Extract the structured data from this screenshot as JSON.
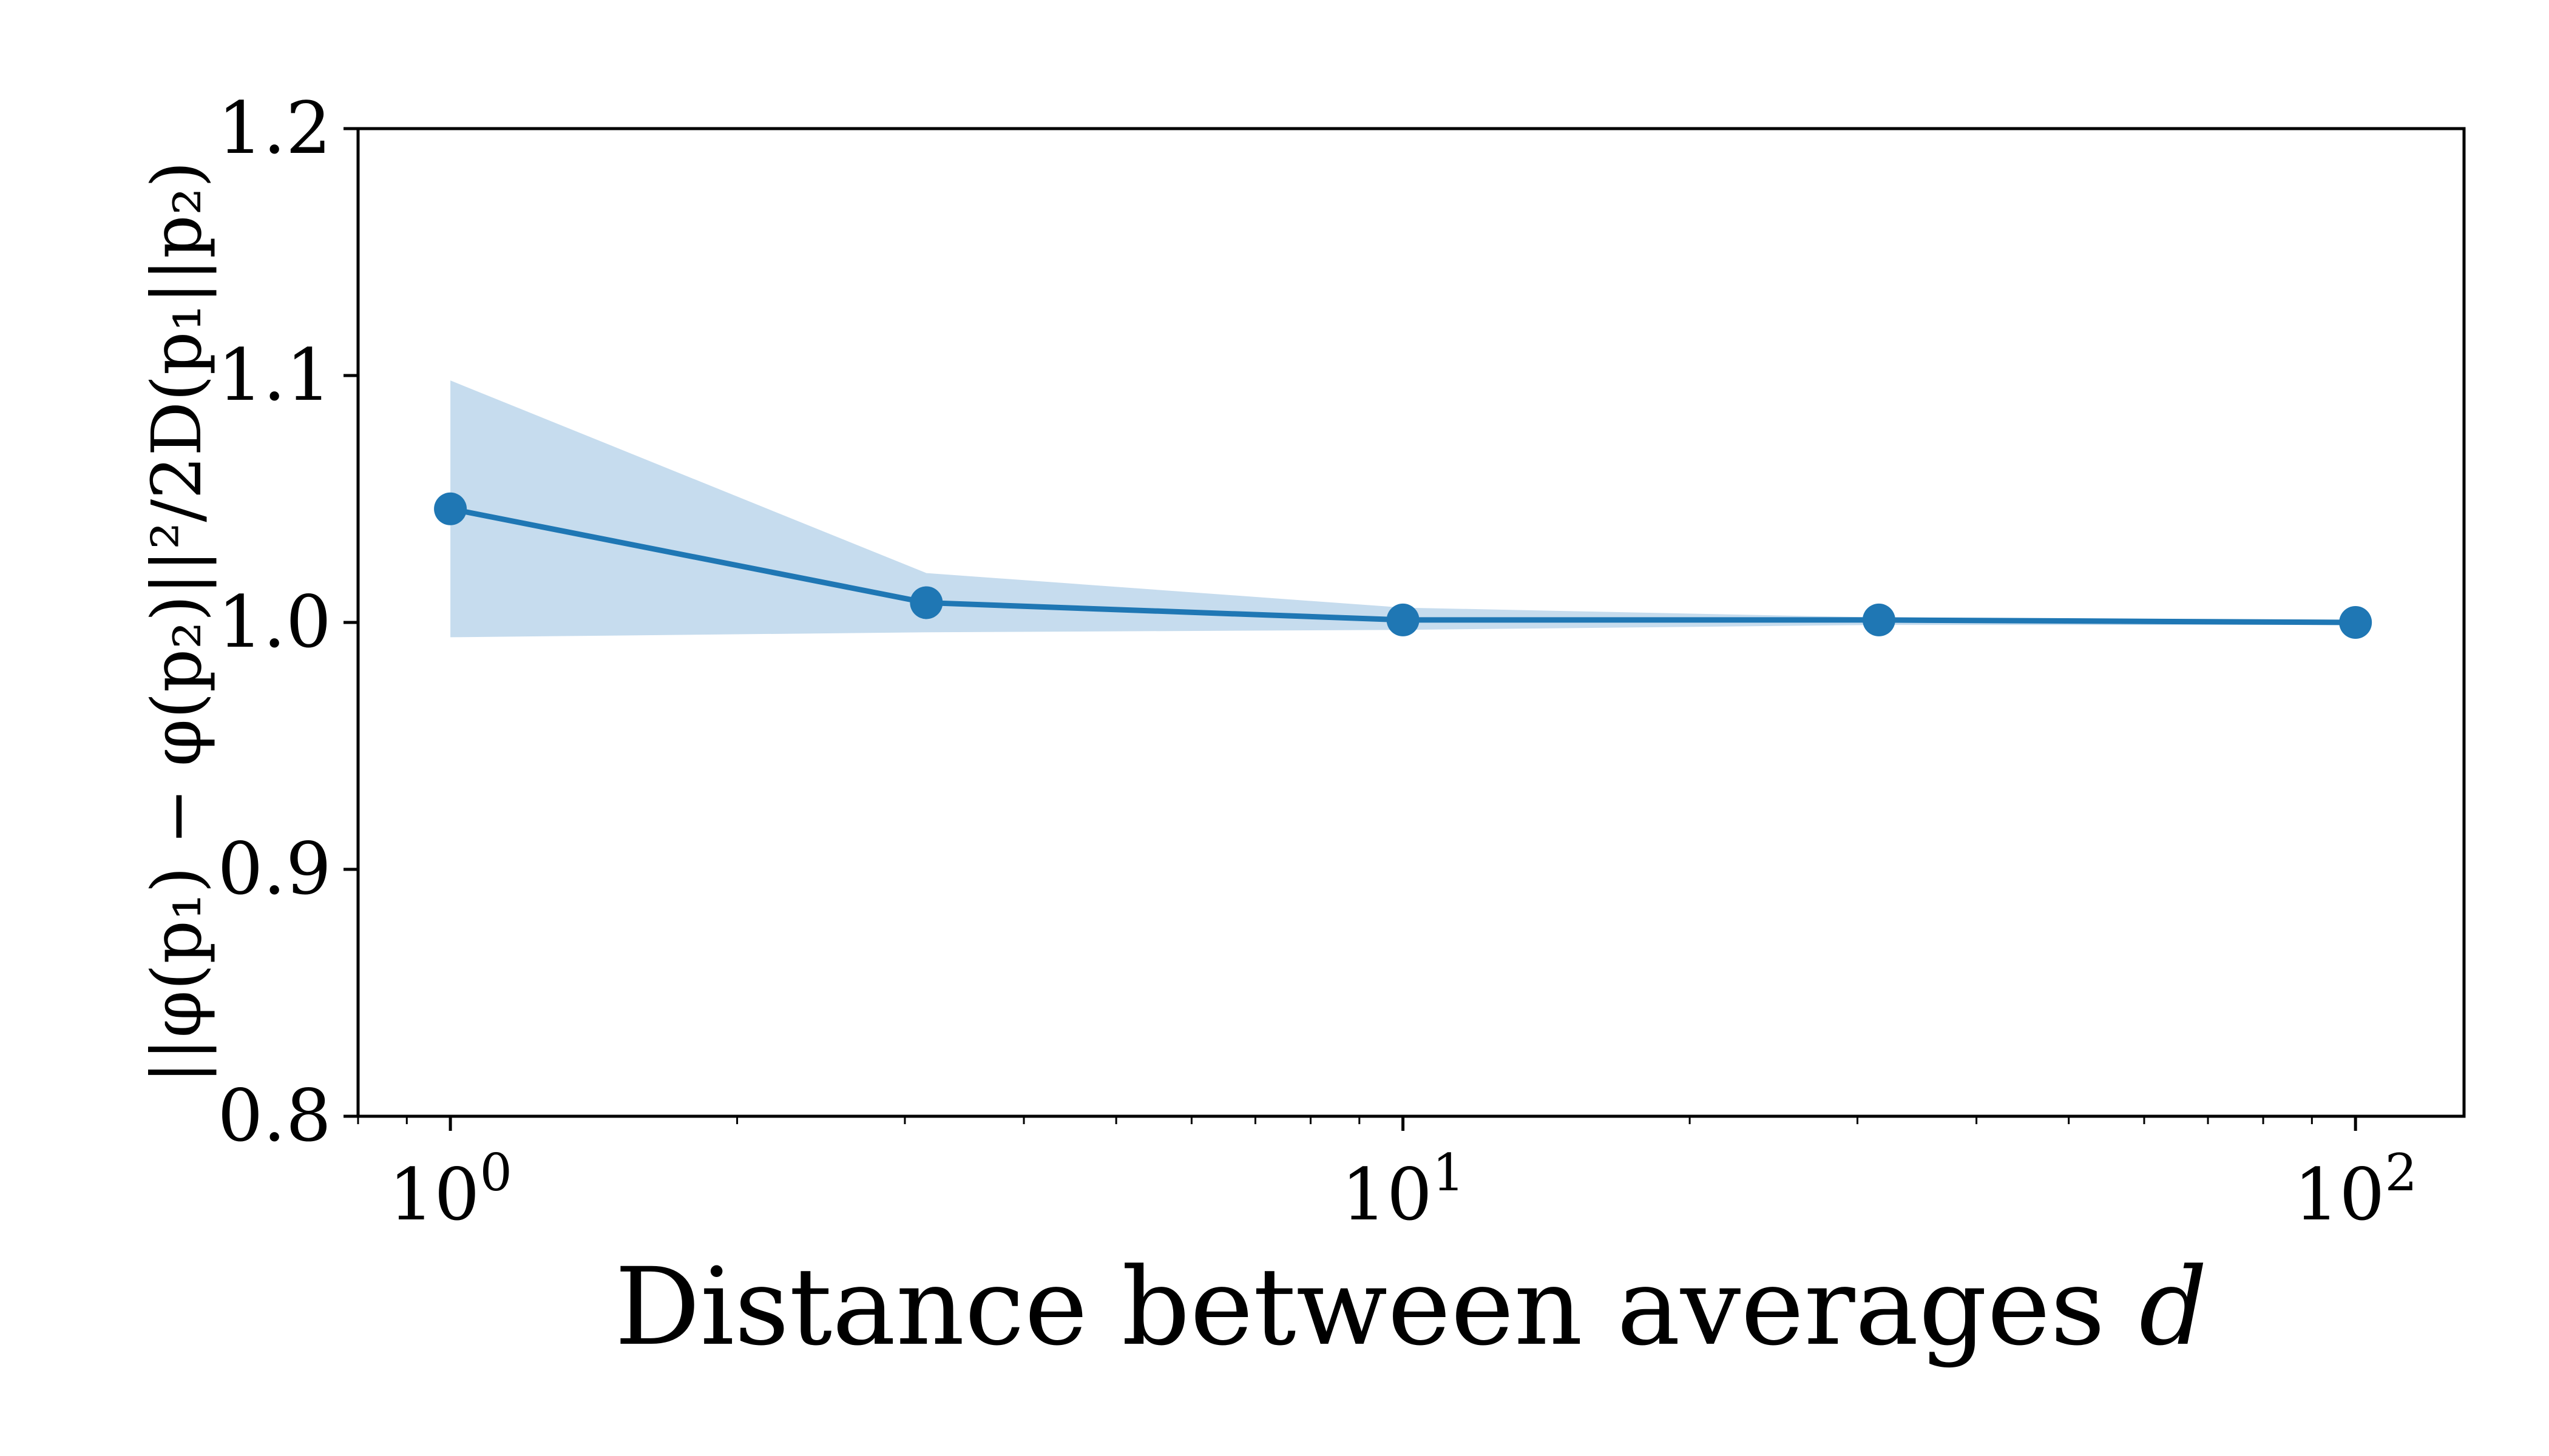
{
  "chart_data": {
    "type": "line",
    "title": "",
    "xlabel": "Distance between averages d",
    "ylabel": "||φ(p₁) − φ(p₂)||²/2D(p₁||p₂)",
    "xscale": "log",
    "xlim": [
      0.8,
      130
    ],
    "ylim": [
      0.8,
      1.2
    ],
    "grid": false,
    "x_ticks": [
      {
        "value": 1,
        "base": "10",
        "exp": "0"
      },
      {
        "value": 10,
        "base": "10",
        "exp": "1"
      },
      {
        "value": 100,
        "base": "10",
        "exp": "2"
      }
    ],
    "y_ticks": [
      {
        "value": 0.8,
        "label": "0.8"
      },
      {
        "value": 0.9,
        "label": "0.9"
      },
      {
        "value": 1.0,
        "label": "1.0"
      },
      {
        "value": 1.1,
        "label": "1.1"
      },
      {
        "value": 1.2,
        "label": "1.2"
      }
    ],
    "series": [
      {
        "x": [
          1,
          3.16,
          10,
          31.6,
          100
        ],
        "y": [
          1.046,
          1.008,
          1.001,
          1.001,
          1.0
        ],
        "lower": [
          0.994,
          0.996,
          0.997,
          0.999,
          0.999
        ],
        "upper": [
          1.098,
          1.02,
          1.006,
          1.002,
          1.001
        ],
        "color": "#1f77b4",
        "band_color": "#c6dcee"
      }
    ]
  }
}
